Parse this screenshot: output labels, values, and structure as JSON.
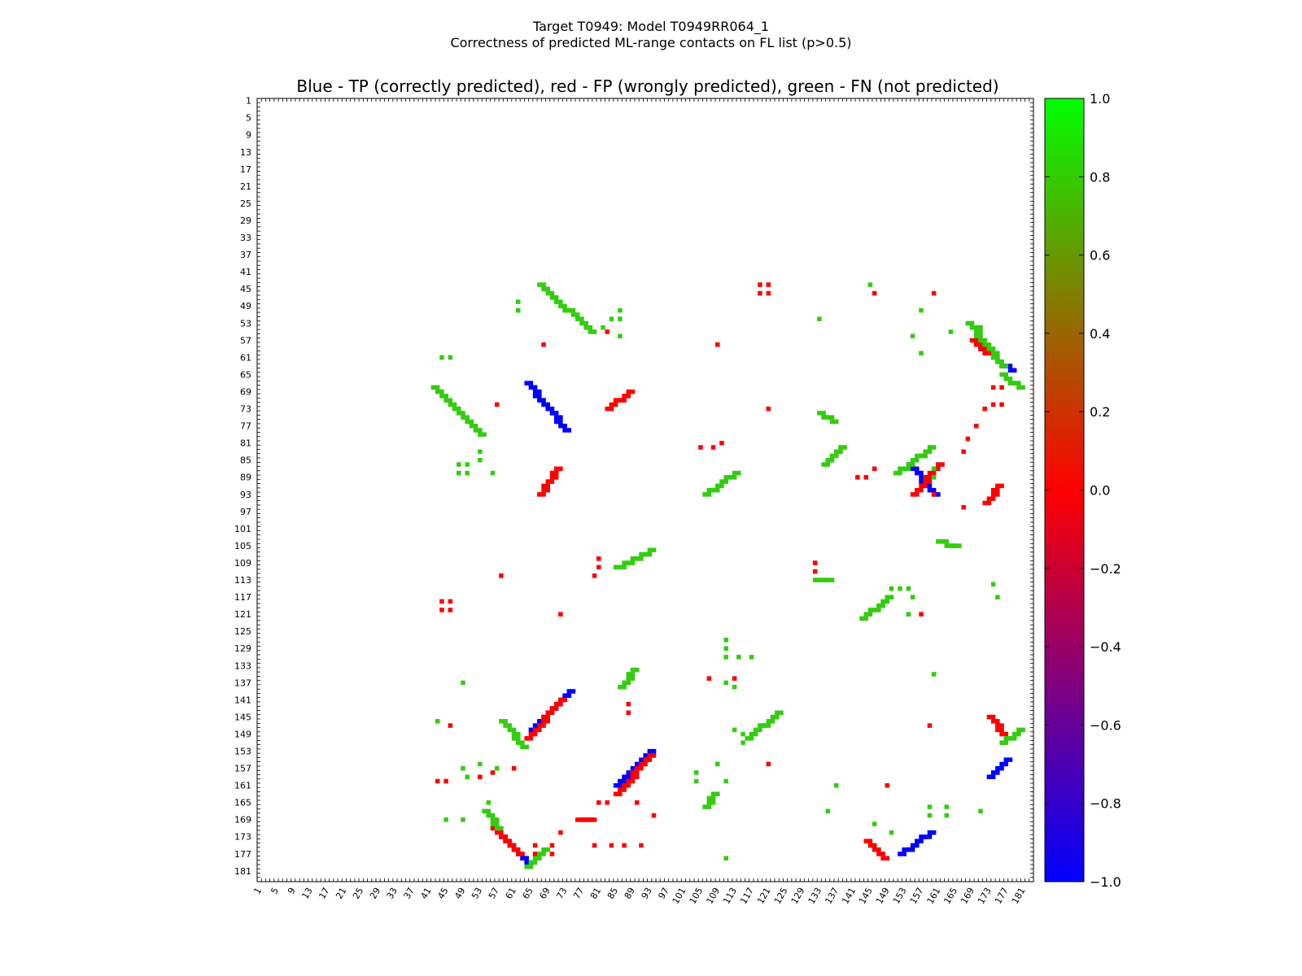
{
  "figure": {
    "suptitle_line1": "Target T0949: Model T0949RR064_1",
    "suptitle_line2": "Correctness of predicted ML-range contacts on FL list (p>0.5)"
  },
  "colors": {
    "tp": "#0000ff",
    "fp": "#ff0000",
    "fn": "#33cc11",
    "background": "#ffffff"
  },
  "chart_data": {
    "type": "heatmap",
    "title": "Blue - TP (correctly predicted), red - FP (wrongly predicted), green - FN (not predicted)",
    "xlabel": "",
    "ylabel": "",
    "xlim": [
      1,
      183
    ],
    "ylim": [
      1,
      183
    ],
    "x_tick_labels": [
      "1",
      "5",
      "9",
      "13",
      "17",
      "21",
      "25",
      "29",
      "33",
      "37",
      "41",
      "45",
      "49",
      "53",
      "57",
      "61",
      "65",
      "69",
      "73",
      "77",
      "81",
      "85",
      "89",
      "93",
      "97",
      "101",
      "105",
      "109",
      "113",
      "117",
      "121",
      "125",
      "129",
      "133",
      "137",
      "141",
      "145",
      "149",
      "153",
      "157",
      "161",
      "165",
      "169",
      "173",
      "177",
      "181"
    ],
    "y_tick_labels": [
      "1",
      "5",
      "9",
      "13",
      "17",
      "21",
      "25",
      "29",
      "33",
      "37",
      "41",
      "45",
      "49",
      "53",
      "57",
      "61",
      "65",
      "69",
      "73",
      "77",
      "81",
      "85",
      "89",
      "93",
      "97",
      "101",
      "105",
      "109",
      "113",
      "117",
      "121",
      "125",
      "129",
      "133",
      "137",
      "141",
      "145",
      "149",
      "153",
      "157",
      "161",
      "165",
      "169",
      "173",
      "177",
      "181"
    ],
    "colorbar": {
      "range": [
        -1.0,
        1.0
      ],
      "tick_labels": [
        "1.0",
        "0.8",
        "0.6",
        "0.4",
        "0.2",
        "0.0",
        "−0.2",
        "−0.4",
        "−0.6",
        "−0.8",
        "−1.0"
      ],
      "colors": [
        "#0000ff",
        "#ff0000",
        "#00ff00"
      ]
    },
    "series": [
      {
        "name": "TP",
        "value": -1.0,
        "segments": [
          [
            [
              65,
              148
            ],
            [
              74,
              139
            ]
          ],
          [
            [
              73,
              78
            ],
            [
              64,
              67
            ]
          ],
          [
            [
              170,
              58
            ],
            [
              178,
              64
            ]
          ],
          [
            [
              154,
              86
            ],
            [
              160,
              93
            ]
          ],
          [
            [
              85,
              161
            ],
            [
              93,
              153
            ]
          ],
          [
            [
              58,
              173
            ],
            [
              64,
              179
            ]
          ],
          [
            [
              152,
              177
            ],
            [
              159,
              172
            ]
          ],
          [
            [
              173,
              159
            ],
            [
              177,
              155
            ]
          ]
        ]
      },
      {
        "name": "FP",
        "value": 0.0,
        "segments": [
          [
            [
              64,
              150
            ],
            [
              72,
              141
            ]
          ],
          [
            [
              83,
              73
            ],
            [
              88,
              69
            ]
          ],
          [
            [
              67,
              93
            ],
            [
              71,
              87
            ]
          ],
          [
            [
              155,
              93
            ],
            [
              161,
              86
            ]
          ],
          [
            [
              85,
              163
            ],
            [
              93,
              154
            ]
          ],
          [
            [
              56,
              171
            ],
            [
              62,
              177
            ]
          ],
          [
            [
              144,
              174
            ],
            [
              148,
              178
            ]
          ],
          [
            [
              76,
              169
            ],
            [
              79,
              169
            ]
          ],
          [
            [
              173,
              145
            ],
            [
              176,
              149
            ]
          ],
          [
            [
              172,
              95
            ],
            [
              175,
              91
            ]
          ],
          [
            [
              169,
              57
            ],
            [
              172,
              60
            ]
          ]
        ],
        "points": [
          [
            119,
            44
          ],
          [
            119,
            46
          ],
          [
            121,
            44
          ],
          [
            121,
            46
          ],
          [
            146,
            46
          ],
          [
            160,
            46
          ],
          [
            68,
            58
          ],
          [
            109,
            58
          ],
          [
            83,
            55
          ],
          [
            57,
            72
          ],
          [
            121,
            73
          ],
          [
            105,
            82
          ],
          [
            108,
            82
          ],
          [
            110,
            81
          ],
          [
            146,
            87
          ],
          [
            142,
            89
          ],
          [
            144,
            89
          ],
          [
            160,
            93
          ],
          [
            167,
            96
          ],
          [
            81,
            108
          ],
          [
            81,
            110
          ],
          [
            58,
            112
          ],
          [
            80,
            112
          ],
          [
            44,
            118
          ],
          [
            44,
            120
          ],
          [
            46,
            118
          ],
          [
            46,
            120
          ],
          [
            72,
            121
          ],
          [
            157,
            121
          ],
          [
            132,
            109
          ],
          [
            132,
            111
          ],
          [
            107,
            136
          ],
          [
            113,
            136
          ],
          [
            88,
            142
          ],
          [
            88,
            144
          ],
          [
            46,
            147
          ],
          [
            159,
            147
          ],
          [
            121,
            156
          ],
          [
            149,
            161
          ],
          [
            43,
            160
          ],
          [
            45,
            160
          ],
          [
            53,
            159
          ],
          [
            56,
            158
          ],
          [
            61,
            157
          ],
          [
            81,
            165
          ],
          [
            83,
            165
          ],
          [
            90,
            165
          ],
          [
            94,
            168
          ],
          [
            72,
            172
          ],
          [
            66,
            175
          ],
          [
            70,
            175
          ],
          [
            66,
            177
          ],
          [
            70,
            177
          ],
          [
            80,
            175
          ],
          [
            84,
            175
          ],
          [
            87,
            175
          ],
          [
            91,
            175
          ],
          [
            174,
            68
          ],
          [
            174,
            72
          ],
          [
            176,
            68
          ],
          [
            176,
            72
          ],
          [
            172,
            73
          ],
          [
            168,
            80
          ],
          [
            167,
            83
          ],
          [
            170,
            77
          ]
        ]
      },
      {
        "name": "FN",
        "value": 1.0,
        "segments": [
          [
            [
              67,
              44
            ],
            [
              79,
              55
            ]
          ],
          [
            [
              42,
              68
            ],
            [
              53,
              79
            ]
          ],
          [
            [
              85,
              110
            ],
            [
              93,
              106
            ]
          ],
          [
            [
              86,
              138
            ],
            [
              89,
              134
            ]
          ],
          [
            [
              106,
              93
            ],
            [
              113,
              88
            ]
          ],
          [
            [
              134,
              86
            ],
            [
              138,
              82
            ]
          ],
          [
            [
              143,
              122
            ],
            [
              149,
              117
            ]
          ],
          [
            [
              116,
              150
            ],
            [
              123,
              144
            ]
          ],
          [
            [
              63,
              152
            ],
            [
              58,
              146
            ]
          ],
          [
            [
              54,
              167
            ],
            [
              57,
              171
            ]
          ],
          [
            [
              64,
              180
            ],
            [
              68,
              176
            ]
          ],
          [
            [
              168,
              53
            ],
            [
              176,
              63
            ]
          ],
          [
            [
              176,
              65
            ],
            [
              180,
              68
            ]
          ],
          [
            [
              106,
              166
            ],
            [
              108,
              163
            ]
          ],
          [
            [
              132,
              113
            ],
            [
              135,
              113
            ]
          ],
          [
            [
              161,
              104
            ],
            [
              165,
              105
            ]
          ],
          [
            [
              176,
              151
            ],
            [
              180,
              148
            ]
          ],
          [
            [
              151,
              88
            ],
            [
              159,
              82
            ]
          ],
          [
            [
              136,
              76
            ],
            [
              133,
              74
            ]
          ]
        ],
        "points": [
          [
            62,
            48
          ],
          [
            62,
            50
          ],
          [
            86,
            50
          ],
          [
            84,
            52
          ],
          [
            86,
            52
          ],
          [
            82,
            54
          ],
          [
            86,
            56
          ],
          [
            44,
            61
          ],
          [
            46,
            61
          ],
          [
            133,
            52
          ],
          [
            145,
            44
          ],
          [
            157,
            50
          ],
          [
            155,
            56
          ],
          [
            157,
            60
          ],
          [
            150,
            115
          ],
          [
            152,
            115
          ],
          [
            154,
            115
          ],
          [
            155,
            117
          ],
          [
            154,
            121
          ],
          [
            48,
            86
          ],
          [
            50,
            86
          ],
          [
            48,
            88
          ],
          [
            50,
            88
          ],
          [
            56,
            88
          ],
          [
            53,
            83
          ],
          [
            53,
            85
          ],
          [
            111,
            127
          ],
          [
            111,
            129
          ],
          [
            111,
            131
          ],
          [
            114,
            131
          ],
          [
            117,
            131
          ],
          [
            111,
            137
          ],
          [
            113,
            138
          ],
          [
            49,
            137
          ],
          [
            43,
            146
          ],
          [
            49,
            157
          ],
          [
            57,
            157
          ],
          [
            50,
            159
          ],
          [
            53,
            156
          ],
          [
            109,
            156
          ],
          [
            104,
            158
          ],
          [
            104,
            160
          ],
          [
            55,
            165
          ],
          [
            45,
            169
          ],
          [
            49,
            169
          ],
          [
            115,
            149
          ],
          [
            115,
            151
          ],
          [
            113,
            148
          ],
          [
            111,
            160
          ],
          [
            137,
            161
          ],
          [
            111,
            178
          ],
          [
            160,
            135
          ],
          [
            171,
            54
          ],
          [
            135,
            167
          ],
          [
            159,
            166
          ],
          [
            159,
            168
          ],
          [
            163,
            166
          ],
          [
            163,
            168
          ],
          [
            171,
            167
          ],
          [
            160,
            87
          ],
          [
            160,
            89
          ],
          [
            175,
            117
          ],
          [
            164,
            55
          ],
          [
            146,
            170
          ],
          [
            150,
            172
          ],
          [
            174,
            114
          ]
        ]
      }
    ]
  }
}
